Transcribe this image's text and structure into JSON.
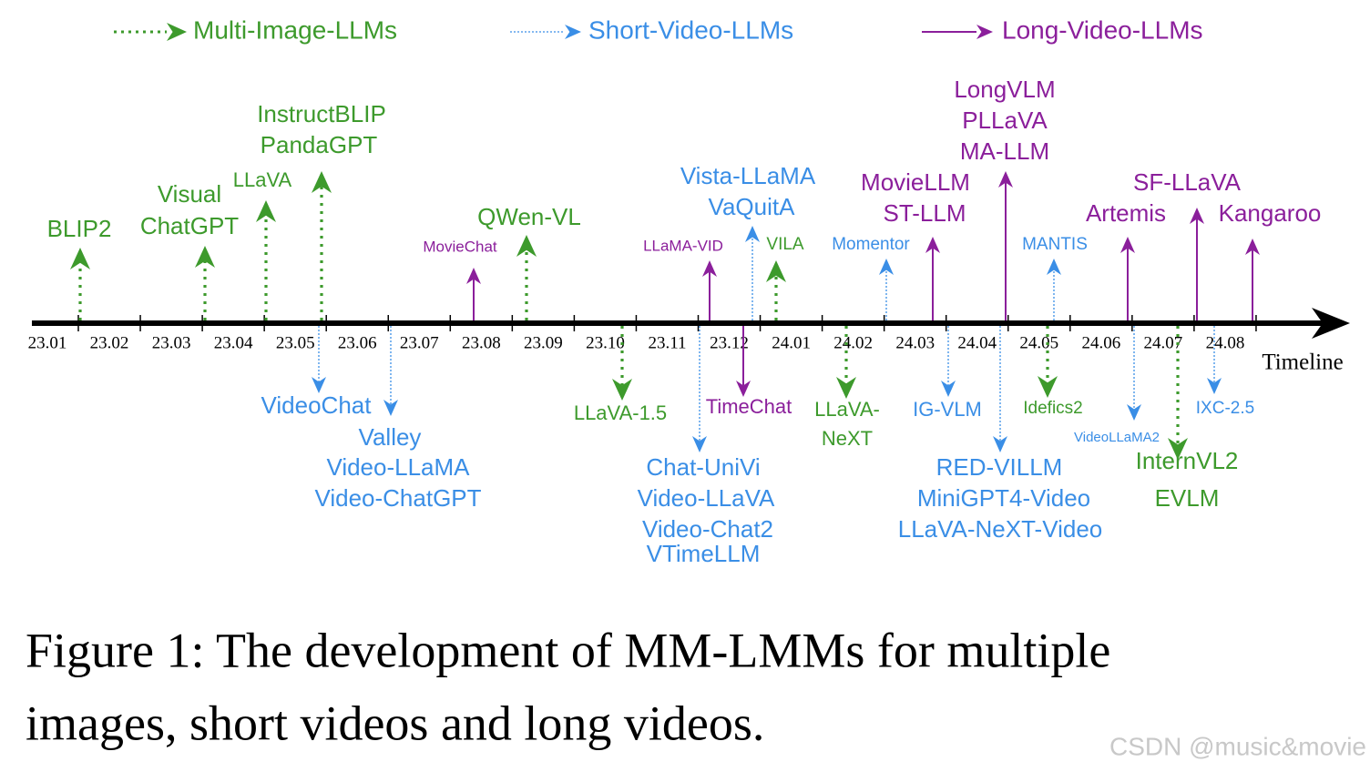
{
  "groups": [
    {
      "name": "Multi-Image-LLMs",
      "color": "#3d9a2c",
      "events": [
        {
          "labels": [
            "BLIP2"
          ]
        },
        {
          "labels": [
            "Visual",
            "ChatGPT"
          ]
        },
        {
          "labels": [
            "LLaVA"
          ]
        },
        {
          "labels": [
            "InstructBLIP",
            "PandaGPT"
          ]
        },
        {
          "labels": [
            "QWen-VL"
          ]
        },
        {
          "labels": [
            "LLaVA-1.5"
          ]
        },
        {
          "labels": [
            "VILA"
          ]
        },
        {
          "labels": [
            "LLaVA-",
            "NeXT"
          ]
        },
        {
          "labels": [
            "Idefics2"
          ]
        },
        {
          "labels": [
            "InternVL2",
            "EVLM"
          ]
        }
      ]
    },
    {
      "name": "Short-Video-LLMs",
      "color": "#3a8ee6",
      "events": [
        {
          "labels": [
            "VideoChat"
          ]
        },
        {
          "labels": [
            "Valley",
            "Video-LLaMA",
            "Video-ChatGPT"
          ]
        },
        {
          "labels": [
            "Chat-UniVi",
            "Video-LLaVA",
            "Video-Chat2",
            "VTimeLLM"
          ]
        },
        {
          "labels": [
            "Vista-LLaMA",
            "VaQuitA"
          ]
        },
        {
          "labels": [
            "Momentor"
          ]
        },
        {
          "labels": [
            "IG-VLM"
          ]
        },
        {
          "labels": [
            "RED-VILLM",
            "MiniGPT4-Video",
            "LLaVA-NeXT-Video"
          ]
        },
        {
          "labels": [
            "MANTIS"
          ]
        },
        {
          "labels": [
            "VideoLLaMA2"
          ]
        },
        {
          "labels": [
            "IXC-2.5"
          ]
        }
      ]
    },
    {
      "name": "Long-Video-LLMs",
      "color": "#8b1f9b",
      "events": [
        {
          "labels": [
            "MovieChat"
          ]
        },
        {
          "labels": [
            "LLaMA-VID"
          ]
        },
        {
          "labels": [
            "TimeChat"
          ]
        },
        {
          "labels": [
            "MovieLLM",
            "ST-LLM"
          ]
        },
        {
          "labels": [
            "LongVLM",
            "PLLaVA",
            "MA-LLM"
          ]
        },
        {
          "labels": [
            "Artemis"
          ]
        },
        {
          "labels": [
            "SF-LLaVA"
          ]
        },
        {
          "labels": [
            "Kangaroo"
          ]
        }
      ]
    }
  ],
  "timeline": {
    "ticks": [
      "23.01",
      "23.02",
      "23.03",
      "23.04",
      "23.05",
      "23.06",
      "23.07",
      "23.08",
      "23.09",
      "23.10",
      "23.11",
      "23.12",
      "24.01",
      "24.02",
      "24.03",
      "24.04",
      "24.05",
      "24.06",
      "24.07",
      "24.08"
    ],
    "label": "Timeline"
  },
  "caption": [
    "Figure 1: The development of MM-LMMs for multiple",
    "images, short videos and long videos."
  ],
  "watermark": "CSDN @music&movie"
}
